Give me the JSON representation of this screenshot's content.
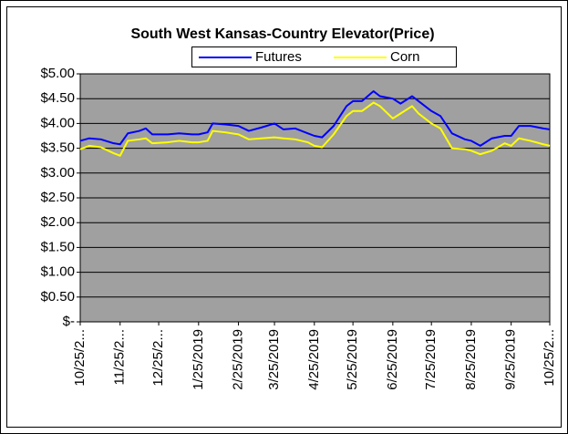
{
  "chart_data": {
    "type": "line",
    "title": "South West Kansas-Country Elevator(Price)",
    "x": [
      "2018-10-25",
      "2018-11-01",
      "2018-11-10",
      "2018-11-20",
      "2018-11-25",
      "2018-12-01",
      "2018-12-10",
      "2018-12-15",
      "2018-12-20",
      "2019-01-01",
      "2019-01-10",
      "2019-01-20",
      "2019-01-25",
      "2019-02-01",
      "2019-02-05",
      "2019-02-15",
      "2019-02-25",
      "2019-03-05",
      "2019-03-15",
      "2019-03-25",
      "2019-04-01",
      "2019-04-10",
      "2019-04-20",
      "2019-04-25",
      "2019-05-01",
      "2019-05-10",
      "2019-05-20",
      "2019-05-25",
      "2019-06-01",
      "2019-06-10",
      "2019-06-15",
      "2019-06-25",
      "2019-07-01",
      "2019-07-10",
      "2019-07-15",
      "2019-07-25",
      "2019-08-01",
      "2019-08-10",
      "2019-08-20",
      "2019-08-25",
      "2019-09-01",
      "2019-09-10",
      "2019-09-20",
      "2019-09-25",
      "2019-10-01",
      "2019-10-10",
      "2019-10-20",
      "2019-10-25"
    ],
    "series": [
      {
        "name": "Futures",
        "color": "#0000ff",
        "values": [
          3.65,
          3.7,
          3.68,
          3.6,
          3.58,
          3.8,
          3.85,
          3.9,
          3.78,
          3.78,
          3.8,
          3.78,
          3.78,
          3.82,
          4.0,
          3.98,
          3.95,
          3.85,
          3.92,
          4.0,
          3.88,
          3.9,
          3.8,
          3.75,
          3.72,
          3.95,
          4.35,
          4.45,
          4.45,
          4.65,
          4.55,
          4.5,
          4.4,
          4.55,
          4.45,
          4.25,
          4.15,
          3.8,
          3.68,
          3.65,
          3.55,
          3.7,
          3.75,
          3.75,
          3.95,
          3.95,
          3.9,
          3.88
        ]
      },
      {
        "name": "Corn",
        "color": "#ffff00",
        "values": [
          3.48,
          3.55,
          3.52,
          3.4,
          3.35,
          3.65,
          3.68,
          3.7,
          3.6,
          3.62,
          3.65,
          3.62,
          3.62,
          3.65,
          3.85,
          3.82,
          3.78,
          3.68,
          3.7,
          3.72,
          3.7,
          3.68,
          3.62,
          3.55,
          3.52,
          3.78,
          4.15,
          4.25,
          4.25,
          4.42,
          4.35,
          4.1,
          4.2,
          4.35,
          4.2,
          4.0,
          3.9,
          3.5,
          3.48,
          3.45,
          3.38,
          3.45,
          3.6,
          3.55,
          3.7,
          3.65,
          3.58,
          3.55
        ]
      }
    ],
    "xlim": [
      "2018-10-25",
      "2019-10-25"
    ],
    "xticks": [
      {
        "value": "2018-10-25",
        "label": "10/25/2..."
      },
      {
        "value": "2018-11-25",
        "label": "11/25/2..."
      },
      {
        "value": "2018-12-25",
        "label": "12/25/2..."
      },
      {
        "value": "2019-01-25",
        "label": "1/25/2019"
      },
      {
        "value": "2019-02-25",
        "label": "2/25/2019"
      },
      {
        "value": "2019-03-25",
        "label": "3/25/2019"
      },
      {
        "value": "2019-04-25",
        "label": "4/25/2019"
      },
      {
        "value": "2019-05-25",
        "label": "5/25/2019"
      },
      {
        "value": "2019-06-25",
        "label": "6/25/2019"
      },
      {
        "value": "2019-07-25",
        "label": "7/25/2019"
      },
      {
        "value": "2019-08-25",
        "label": "8/25/2019"
      },
      {
        "value": "2019-09-25",
        "label": "9/25/2019"
      },
      {
        "value": "2019-10-25",
        "label": "10/25/2..."
      }
    ],
    "ylim": [
      0,
      5
    ],
    "yticks": [
      {
        "value": 0,
        "label": "$-"
      },
      {
        "value": 0.5,
        "label": "$0.50"
      },
      {
        "value": 1,
        "label": "$1.00"
      },
      {
        "value": 1.5,
        "label": "$1.50"
      },
      {
        "value": 2,
        "label": "$2.00"
      },
      {
        "value": 2.5,
        "label": "$2.50"
      },
      {
        "value": 3,
        "label": "$3.00"
      },
      {
        "value": 3.5,
        "label": "$3.50"
      },
      {
        "value": 4,
        "label": "$4.00"
      },
      {
        "value": 4.5,
        "label": "$4.50"
      },
      {
        "value": 5,
        "label": "$5.00"
      }
    ],
    "grid": true,
    "plot_background": "#a0a0a0",
    "legend": "top"
  }
}
